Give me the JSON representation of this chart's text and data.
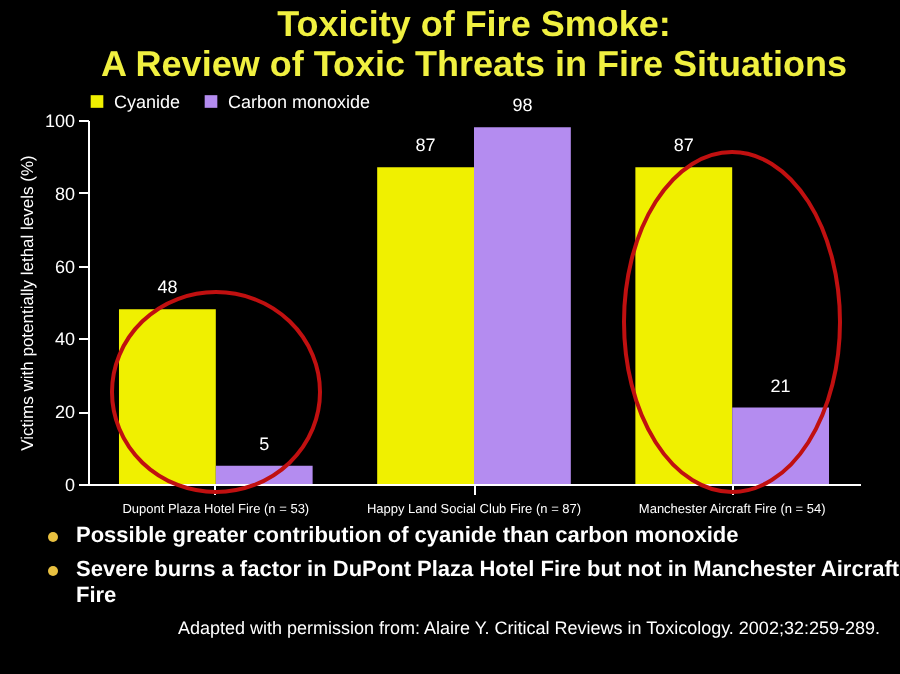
{
  "chart_data": {
    "type": "bar",
    "title": "Toxicity of Fire Smoke:",
    "subtitle": "A Review of Toxic Threats in Fire Situations",
    "ylabel": "Victims with potentially lethal levels (%)",
    "categories": [
      "Dupont Plaza Hotel Fire (n = 53)",
      "Happy Land Social Club Fire (n = 87)",
      "Manchester Aircraft Fire (n = 54)"
    ],
    "series": [
      {
        "name": "Cyanide",
        "color": "#f0f000",
        "values": [
          48,
          87,
          87
        ]
      },
      {
        "name": "Carbon monoxide",
        "color": "#b48cf0",
        "values": [
          5,
          98,
          21
        ]
      }
    ],
    "ylim": [
      0,
      100
    ],
    "yticks": [
      0,
      20,
      40,
      60,
      80,
      100
    ],
    "grid": false,
    "legend": "top",
    "data_labels": true,
    "annotations": [
      "Possible greater contribution of cyanide than carbon monoxide",
      "Severe burns a factor in DuPont Plaza Hotel Fire but not in Manchester Aircraft Fire",
      "Adapted with permission from: Alaire Y. Critical Reviews in Toxicology. 2002;32:259-289."
    ]
  }
}
